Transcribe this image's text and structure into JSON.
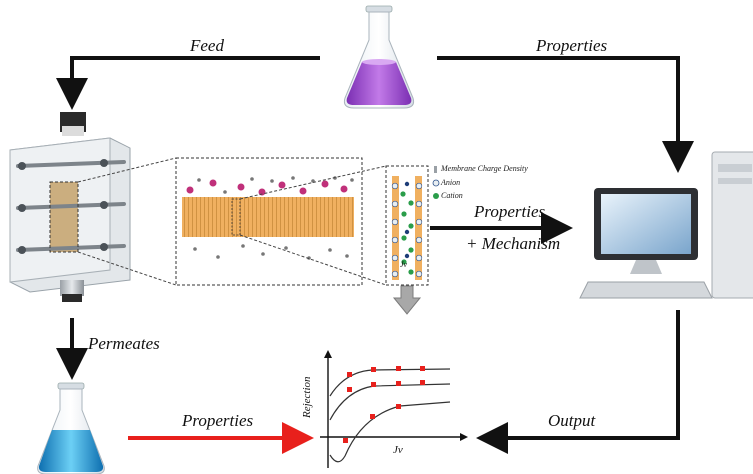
{
  "arrows": {
    "feed": "Feed",
    "properties_top": "Properties",
    "properties_mid": "Properties",
    "mechanism": "+ Mechanism",
    "permeates": "Permeates",
    "properties_bottom": "Properties",
    "output": "Output"
  },
  "legend": {
    "charge_density": "Membrane Charge Density",
    "anion": "Anion",
    "cation": "Cation"
  },
  "flux_label": "Jv",
  "plot": {
    "ylabel": "Rejection",
    "xlabel": "Jv"
  },
  "colors": {
    "feed_liquid": "#a24fd8",
    "permeate_liquid": "#1f9fd9",
    "membrane": "#f0b060",
    "arrow": "#111111",
    "properties_arrow": "#e8201c",
    "data_point": "#e8201c",
    "ion_magenta": "#c0307a"
  },
  "icons": [
    "feed-flask-icon",
    "permeate-flask-icon",
    "membrane-cell-icon",
    "computer-icon",
    "flux-arrow-icon"
  ]
}
